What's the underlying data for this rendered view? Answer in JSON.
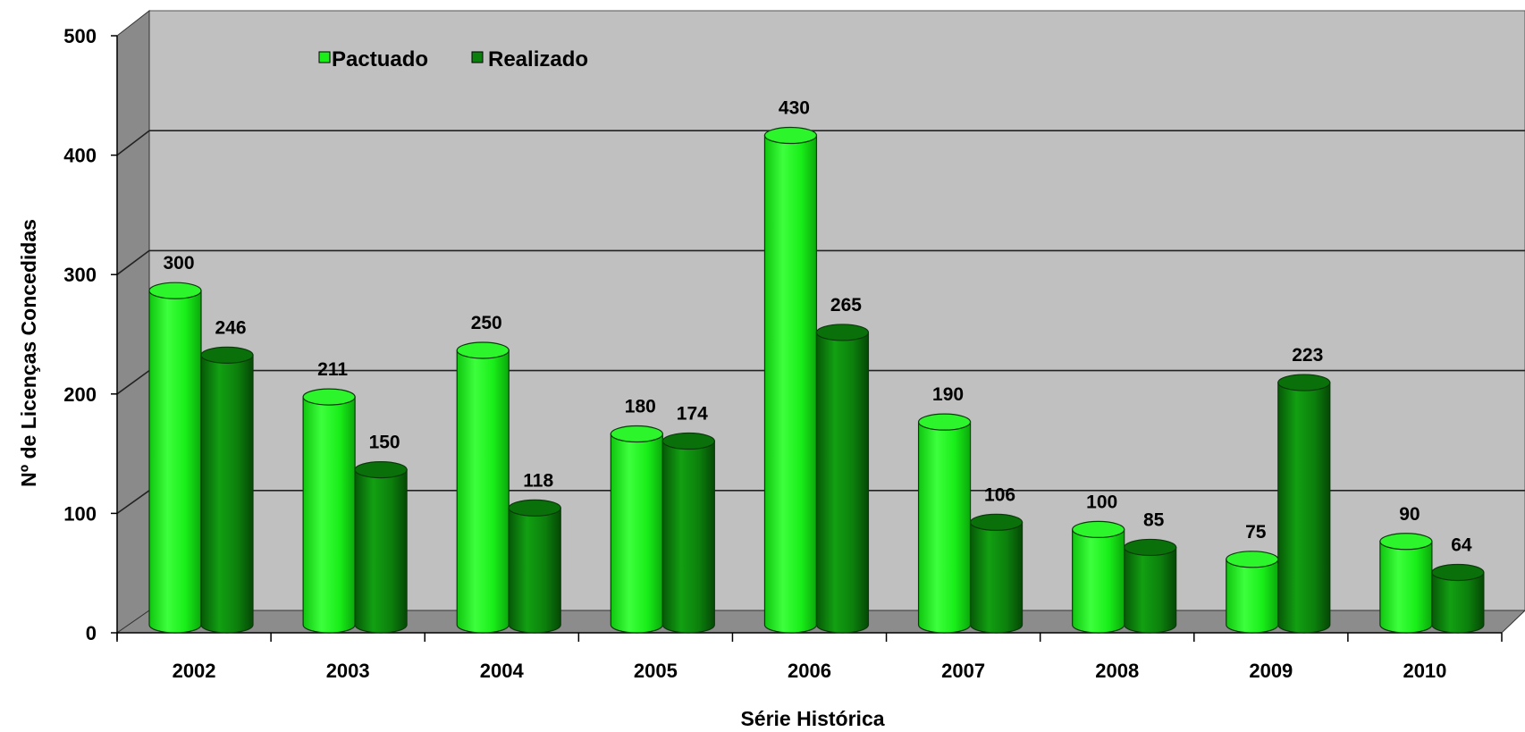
{
  "chart_data": {
    "type": "bar",
    "categories": [
      "2002",
      "2003",
      "2004",
      "2005",
      "2006",
      "2007",
      "2008",
      "2009",
      "2010"
    ],
    "series": [
      {
        "name": "Pactuado",
        "values": [
          300,
          211,
          250,
          180,
          430,
          190,
          100,
          75,
          90
        ]
      },
      {
        "name": "Realizado",
        "values": [
          246,
          150,
          118,
          174,
          265,
          106,
          85,
          223,
          64
        ]
      }
    ],
    "xlabel": "Série Histórica",
    "ylabel": "Nº de Licenças  Concedidas",
    "ylim": [
      0,
      500
    ],
    "yticks": [
      0,
      100,
      200,
      300,
      400,
      500
    ],
    "grid": true,
    "legend": "top-left",
    "style": "3d-cylinder",
    "colors": {
      "Pactuado": "#19ee19",
      "Realizado": "#0c800c",
      "plot_back": "#c0c0c0",
      "side_wall": "#8a8a8a",
      "floor": "#8c8c8c"
    }
  }
}
